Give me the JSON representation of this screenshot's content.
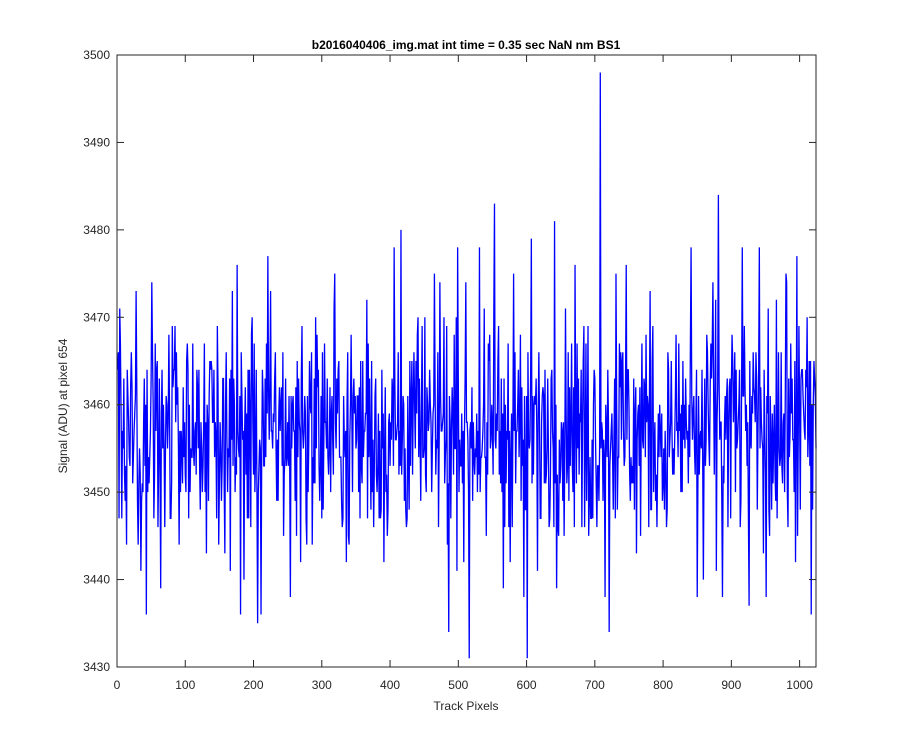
{
  "chart_data": {
    "type": "line",
    "title": "b2016040406_img.mat int time = 0.35 sec  NaN nm BS1",
    "xlabel": "Track Pixels",
    "ylabel": "Signal (ADU) at pixel 654",
    "xlim": [
      0,
      1024
    ],
    "ylim": [
      3430,
      3500
    ],
    "xticks": [
      0,
      100,
      200,
      300,
      400,
      500,
      600,
      700,
      800,
      900,
      1000
    ],
    "yticks": [
      3430,
      3440,
      3450,
      3460,
      3470,
      3480,
      3490,
      3500
    ],
    "grid": false,
    "legend": "none",
    "series": [
      {
        "color": "#0000ff",
        "n_points": 1024,
        "baseline": 3457,
        "noise_amplitude": 6,
        "notable_points": [
          [
            3,
            3471
          ],
          [
            6,
            3447
          ],
          [
            14,
            3464
          ],
          [
            27,
            3473
          ],
          [
            30,
            3444
          ],
          [
            34,
            3441
          ],
          [
            42,
            3436
          ],
          [
            50,
            3474
          ],
          [
            55,
            3467
          ],
          [
            63,
            3439
          ],
          [
            75,
            3468
          ],
          [
            80,
            3469
          ],
          [
            97,
            3454
          ],
          [
            116,
            3464
          ],
          [
            127,
            3467
          ],
          [
            130,
            3443
          ],
          [
            148,
            3444
          ],
          [
            155,
            3463
          ],
          [
            160,
            3456
          ],
          [
            165,
            3441
          ],
          [
            175,
            3476
          ],
          [
            180,
            3436
          ],
          [
            185,
            3440
          ],
          [
            200,
            3467
          ],
          [
            205,
            3435
          ],
          [
            210,
            3436
          ],
          [
            220,
            3477
          ],
          [
            240,
            3462
          ],
          [
            253,
            3438
          ],
          [
            270,
            3469
          ],
          [
            290,
            3470
          ],
          [
            300,
            3466
          ],
          [
            318,
            3475
          ],
          [
            335,
            3442
          ],
          [
            355,
            3447
          ],
          [
            365,
            3472
          ],
          [
            380,
            3450
          ],
          [
            390,
            3442
          ],
          [
            405,
            3478
          ],
          [
            415,
            3480
          ],
          [
            420,
            3449
          ],
          [
            440,
            3470
          ],
          [
            460,
            3450
          ],
          [
            472,
            3474
          ],
          [
            485,
            3434
          ],
          [
            498,
            3478
          ],
          [
            515,
            3431
          ],
          [
            530,
            3478
          ],
          [
            540,
            3445
          ],
          [
            552,
            3483
          ],
          [
            565,
            3439
          ],
          [
            580,
            3475
          ],
          [
            595,
            3438
          ],
          [
            600,
            3431
          ],
          [
            606,
            3479
          ],
          [
            615,
            3441
          ],
          [
            640,
            3481
          ],
          [
            660,
            3466
          ],
          [
            670,
            3476
          ],
          [
            690,
            3445
          ],
          [
            707,
            3498
          ],
          [
            714,
            3438
          ],
          [
            720,
            3434
          ],
          [
            730,
            3475
          ],
          [
            745,
            3476
          ],
          [
            760,
            3443
          ],
          [
            780,
            3473
          ],
          [
            800,
            3455
          ],
          [
            822,
            3467
          ],
          [
            840,
            3478
          ],
          [
            849,
            3438
          ],
          [
            858,
            3440
          ],
          [
            872,
            3474
          ],
          [
            880,
            3484
          ],
          [
            886,
            3438
          ],
          [
            900,
            3468
          ],
          [
            915,
            3478
          ],
          [
            925,
            3437
          ],
          [
            940,
            3478
          ],
          [
            950,
            3438
          ],
          [
            965,
            3472
          ],
          [
            980,
            3474
          ],
          [
            995,
            3477
          ],
          [
            1000,
            3448
          ],
          [
            1010,
            3470
          ],
          [
            1016,
            3436
          ],
          [
            1020,
            3465
          ]
        ]
      }
    ]
  }
}
